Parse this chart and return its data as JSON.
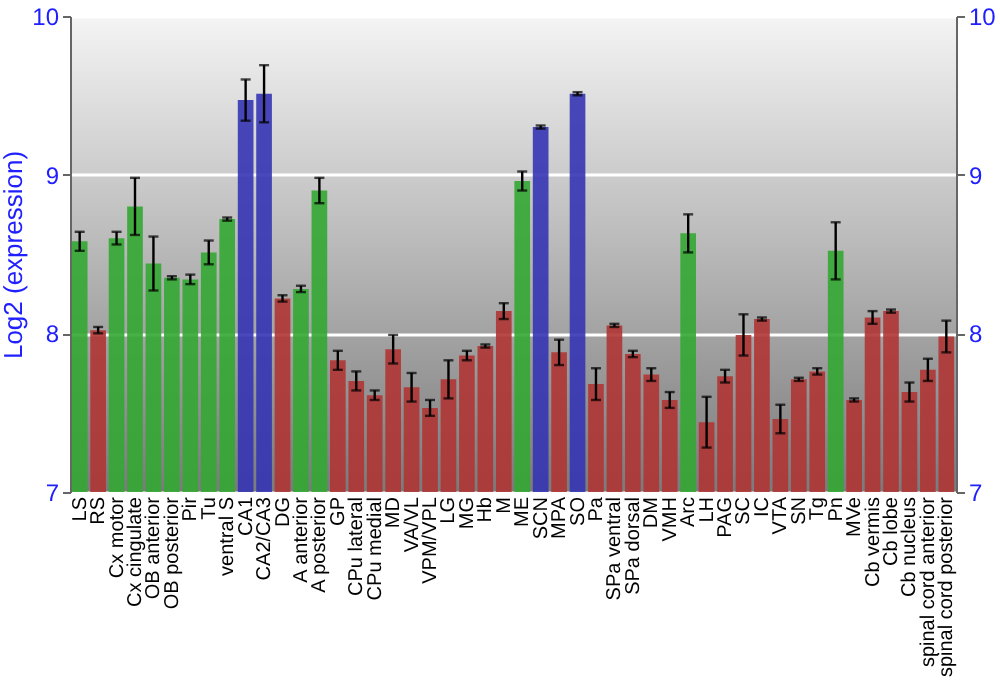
{
  "chart_data": {
    "type": "bar",
    "ylabel": "Log2 (expression)",
    "categories": [
      "LS",
      "RS",
      "Cx motor",
      "Cx cingulate",
      "OB anterior",
      "OB posterior",
      "Pir",
      "Tu",
      "ventral S",
      "CA1",
      "CA2/CA3",
      "DG",
      "A anterior",
      "A posterior",
      "GP",
      "CPu lateral",
      "CPu medial",
      "MD",
      "VA/VL",
      "VPM/VPL",
      "LG",
      "MG",
      "Hb",
      "M",
      "ME",
      "SCN",
      "MPA",
      "SO",
      "Pa",
      "SPa ventral",
      "SPa dorsal",
      "DM",
      "VMH",
      "Arc",
      "LH",
      "PAG",
      "SC",
      "IC",
      "VTA",
      "SN",
      "Tg",
      "Pn",
      "MVe",
      "Cb vermis",
      "Cb lobe",
      "Cb nucleus",
      "spinal cord anterior",
      "spinal cord posterior"
    ],
    "values": [
      8.58,
      8.02,
      8.6,
      8.8,
      8.44,
      8.35,
      8.34,
      8.51,
      8.72,
      9.47,
      9.51,
      8.22,
      8.28,
      8.9,
      7.83,
      7.7,
      7.61,
      7.9,
      7.66,
      7.53,
      7.71,
      7.86,
      7.92,
      8.14,
      8.96,
      9.3,
      7.88,
      9.51,
      7.68,
      8.05,
      7.87,
      7.74,
      7.58,
      8.63,
      7.44,
      7.73,
      7.99,
      8.09,
      7.46,
      7.71,
      7.76,
      8.52,
      7.58,
      8.1,
      8.14,
      7.63,
      7.77,
      7.98
    ],
    "errors": [
      0.06,
      0.02,
      0.04,
      0.18,
      0.17,
      0.01,
      0.03,
      0.075,
      0.01,
      0.13,
      0.18,
      0.02,
      0.02,
      0.08,
      0.06,
      0.06,
      0.03,
      0.09,
      0.09,
      0.05,
      0.12,
      0.03,
      0.01,
      0.05,
      0.06,
      0.01,
      0.08,
      0.01,
      0.1,
      0.01,
      0.02,
      0.04,
      0.05,
      0.12,
      0.16,
      0.04,
      0.13,
      0.01,
      0.09,
      0.01,
      0.02,
      0.18,
      0.01,
      0.04,
      0.01,
      0.06,
      0.07,
      0.1
    ],
    "colors": [
      "#33a833",
      "#b03535",
      "#33a833",
      "#33a833",
      "#33a833",
      "#33a833",
      "#33a833",
      "#33a833",
      "#33a833",
      "#3535b5",
      "#3535b5",
      "#b03535",
      "#33a833",
      "#33a833",
      "#b03535",
      "#b03535",
      "#b03535",
      "#b03535",
      "#b03535",
      "#b03535",
      "#b03535",
      "#b03535",
      "#b03535",
      "#b03535",
      "#33a833",
      "#3535b5",
      "#b03535",
      "#3535b5",
      "#b03535",
      "#b03535",
      "#b03535",
      "#b03535",
      "#b03535",
      "#33a833",
      "#b03535",
      "#b03535",
      "#b03535",
      "#b03535",
      "#b03535",
      "#b03535",
      "#b03535",
      "#33a833",
      "#b03535",
      "#b03535",
      "#b03535",
      "#b03535",
      "#b03535",
      "#b03535"
    ],
    "ylim": [
      7,
      10
    ],
    "yticks": [
      7,
      8,
      9,
      10
    ],
    "y2lim": [
      7,
      10
    ],
    "y2ticks": [
      7,
      8,
      9,
      10
    ],
    "grid": "y"
  }
}
